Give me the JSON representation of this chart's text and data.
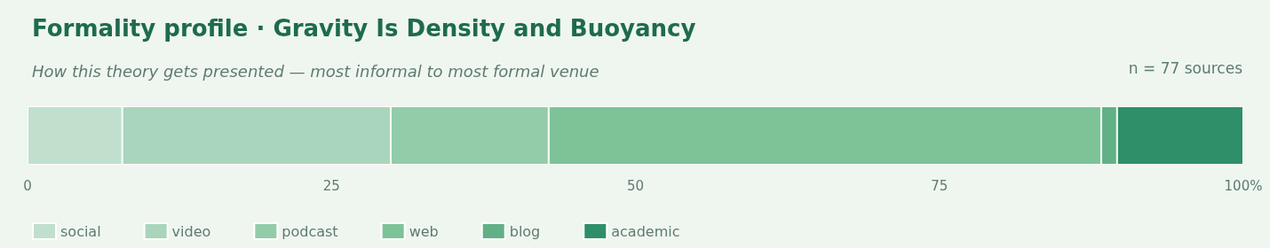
{
  "chart_data": {
    "type": "bar",
    "orientation": "horizontal",
    "stacked": true,
    "title": "Formality profile · Gravity Is Density and Buoyancy",
    "subtitle": "How this theory gets presented — most informal to most formal venue",
    "annotations": [
      "n = 77 sources"
    ],
    "categories": [
      null
    ],
    "series": [
      {
        "name": "social",
        "color": "#c0e0cd",
        "values": [
          7.79
        ]
      },
      {
        "name": "video",
        "color": "#a8d5bb",
        "values": [
          22.08
        ]
      },
      {
        "name": "podcast",
        "color": "#93cca9",
        "values": [
          12.99
        ]
      },
      {
        "name": "web",
        "color": "#7dc397",
        "values": [
          45.45
        ]
      },
      {
        "name": "blog",
        "color": "#62b086",
        "values": [
          1.3
        ]
      },
      {
        "name": "academic",
        "color": "#2e8f69",
        "values": [
          10.39
        ]
      }
    ],
    "xlim": [
      0,
      100
    ],
    "xticks": [
      0,
      25,
      50,
      75,
      {
        "value": 100,
        "label": "100%"
      }
    ],
    "grid": false,
    "legend": "bottom left"
  }
}
